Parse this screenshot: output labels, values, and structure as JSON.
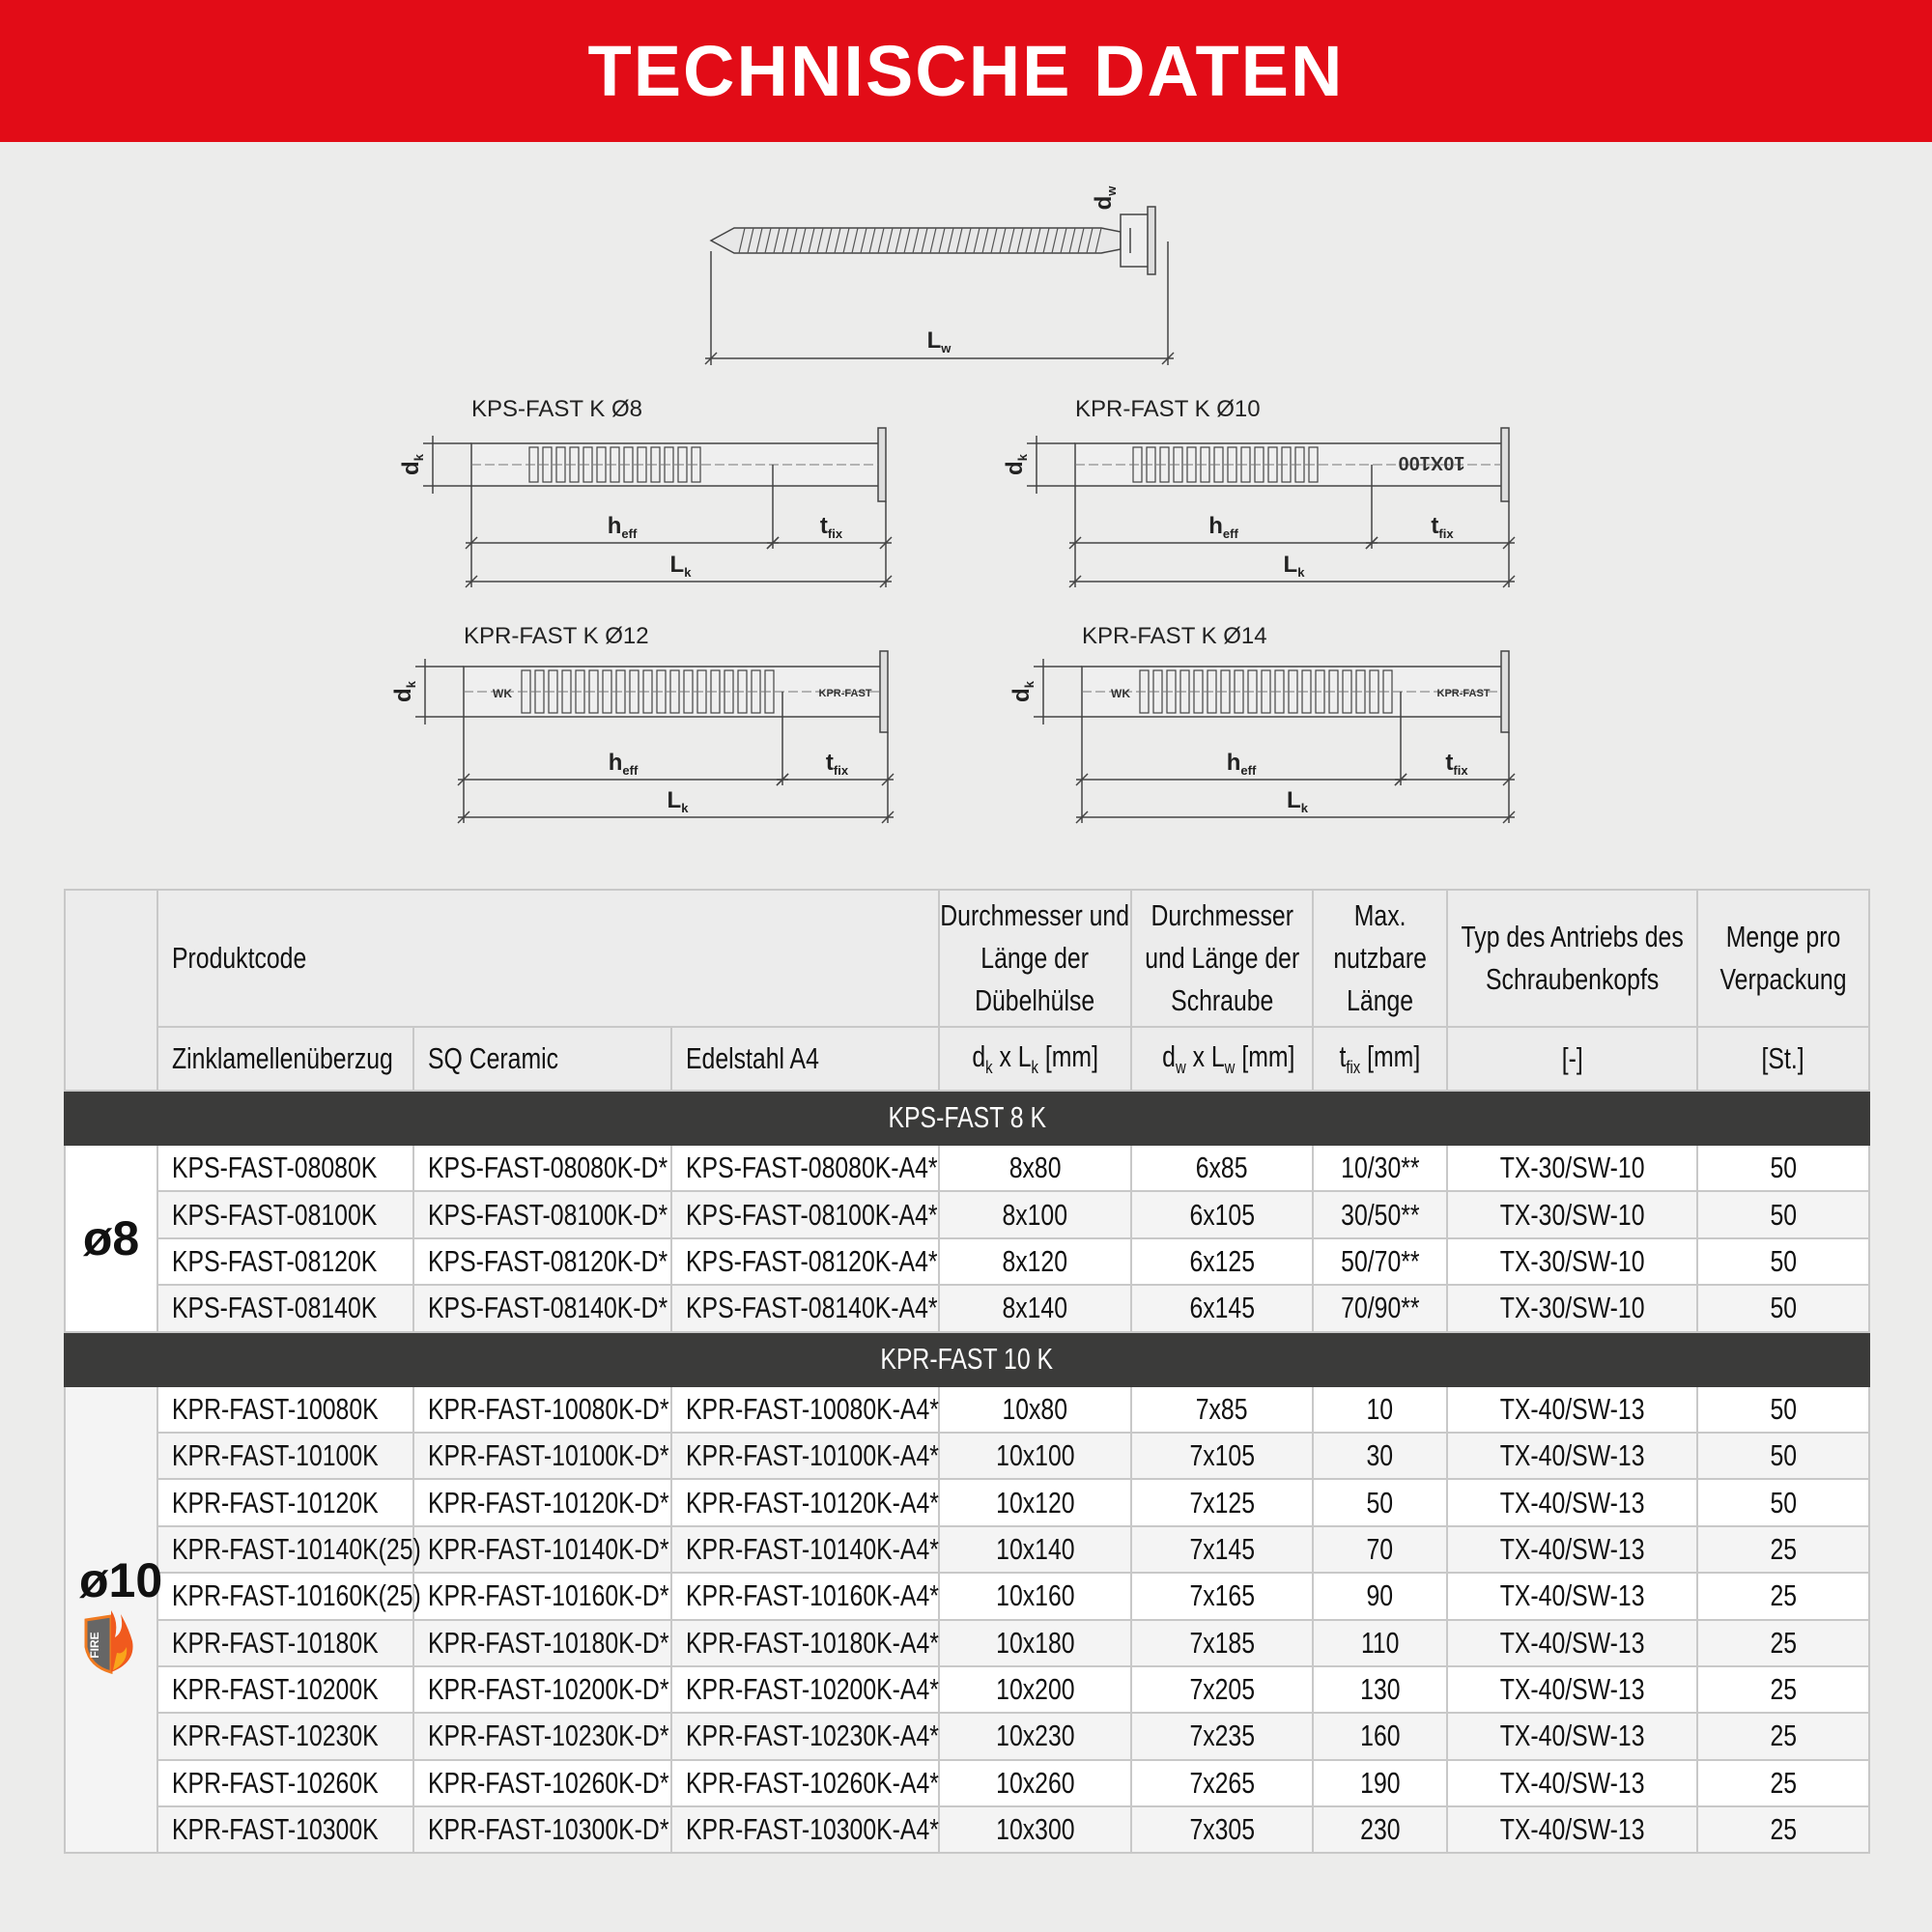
{
  "title": "TECHNISCHE DATEN",
  "drawing": {
    "labels": [
      "KPS-FAST K Ø8",
      "KPR-FAST K Ø10",
      "KPR-FAST K Ø12",
      "KPR-FAST K Ø14"
    ],
    "marks": {
      "Ø10": "10X100",
      "wk": "WK",
      "brand": "KPR-FAST"
    },
    "dk": [
      "d",
      "k"
    ],
    "dw": [
      "d",
      "w"
    ],
    "heff": [
      "h",
      "eff"
    ],
    "tfix": [
      "t",
      "fix"
    ],
    "lk": [
      "L",
      "k"
    ],
    "lw": [
      "L",
      "w"
    ]
  },
  "table": {
    "header": {
      "produktcode": "Produktcode",
      "cols": [
        "Durchmesser und Länge der Dübelhülse",
        "Durchmesser und Länge der Schraube",
        "Max. nutzbare Länge",
        "Typ des Antriebs des Schraubenkopfs",
        "Menge pro Verpackung"
      ],
      "sub": [
        "Zinklamellenüberzug",
        "SQ Ceramic",
        "Edelstahl A4"
      ],
      "units": [
        [
          "d",
          "k",
          " x L",
          "k",
          " [mm]"
        ],
        [
          "d",
          "w",
          " x L",
          "w",
          " [mm]"
        ],
        [
          "t",
          "fix",
          "",
          "",
          " [mm]"
        ],
        [
          "[-]"
        ],
        [
          "[St.]"
        ]
      ]
    },
    "sections": [
      {
        "title": "KPS-FAST 8 K",
        "side": "ø8",
        "icon": "",
        "rows": [
          [
            "KPS-FAST-08080K",
            "KPS-FAST-08080K-D*",
            "KPS-FAST-08080K-A4*",
            "8x80",
            "6x85",
            "10/30**",
            "TX-30/SW-10",
            "50"
          ],
          [
            "KPS-FAST-08100K",
            "KPS-FAST-08100K-D*",
            "KPS-FAST-08100K-A4*",
            "8x100",
            "6x105",
            "30/50**",
            "TX-30/SW-10",
            "50"
          ],
          [
            "KPS-FAST-08120K",
            "KPS-FAST-08120K-D*",
            "KPS-FAST-08120K-A4*",
            "8x120",
            "6x125",
            "50/70**",
            "TX-30/SW-10",
            "50"
          ],
          [
            "KPS-FAST-08140K",
            "KPS-FAST-08140K-D*",
            "KPS-FAST-08140K-A4*",
            "8x140",
            "6x145",
            "70/90**",
            "TX-30/SW-10",
            "50"
          ]
        ]
      },
      {
        "title": "KPR-FAST 10 K",
        "side": "ø10",
        "icon": "FIRE",
        "rows": [
          [
            "KPR-FAST-10080K",
            "KPR-FAST-10080K-D*",
            "KPR-FAST-10080K-A4*",
            "10x80",
            "7x85",
            "10",
            "TX-40/SW-13",
            "50"
          ],
          [
            "KPR-FAST-10100K",
            "KPR-FAST-10100K-D*",
            "KPR-FAST-10100K-A4*",
            "10x100",
            "7x105",
            "30",
            "TX-40/SW-13",
            "50"
          ],
          [
            "KPR-FAST-10120K",
            "KPR-FAST-10120K-D*",
            "KPR-FAST-10120K-A4*",
            "10x120",
            "7x125",
            "50",
            "TX-40/SW-13",
            "50"
          ],
          [
            "KPR-FAST-10140K(25)",
            "KPR-FAST-10140K-D*",
            "KPR-FAST-10140K-A4*",
            "10x140",
            "7x145",
            "70",
            "TX-40/SW-13",
            "25"
          ],
          [
            "KPR-FAST-10160K(25)",
            "KPR-FAST-10160K-D*",
            "KPR-FAST-10160K-A4*",
            "10x160",
            "7x165",
            "90",
            "TX-40/SW-13",
            "25"
          ],
          [
            "KPR-FAST-10180K",
            "KPR-FAST-10180K-D*",
            "KPR-FAST-10180K-A4*",
            "10x180",
            "7x185",
            "110",
            "TX-40/SW-13",
            "25"
          ],
          [
            "KPR-FAST-10200K",
            "KPR-FAST-10200K-D*",
            "KPR-FAST-10200K-A4*",
            "10x200",
            "7x205",
            "130",
            "TX-40/SW-13",
            "25"
          ],
          [
            "KPR-FAST-10230K",
            "KPR-FAST-10230K-D*",
            "KPR-FAST-10230K-A4*",
            "10x230",
            "7x235",
            "160",
            "TX-40/SW-13",
            "25"
          ],
          [
            "KPR-FAST-10260K",
            "KPR-FAST-10260K-D*",
            "KPR-FAST-10260K-A4*",
            "10x260",
            "7x265",
            "190",
            "TX-40/SW-13",
            "25"
          ],
          [
            "KPR-FAST-10300K",
            "KPR-FAST-10300K-D*",
            "KPR-FAST-10300K-A4*",
            "10x300",
            "7x305",
            "230",
            "TX-40/SW-13",
            "25"
          ]
        ]
      }
    ]
  }
}
